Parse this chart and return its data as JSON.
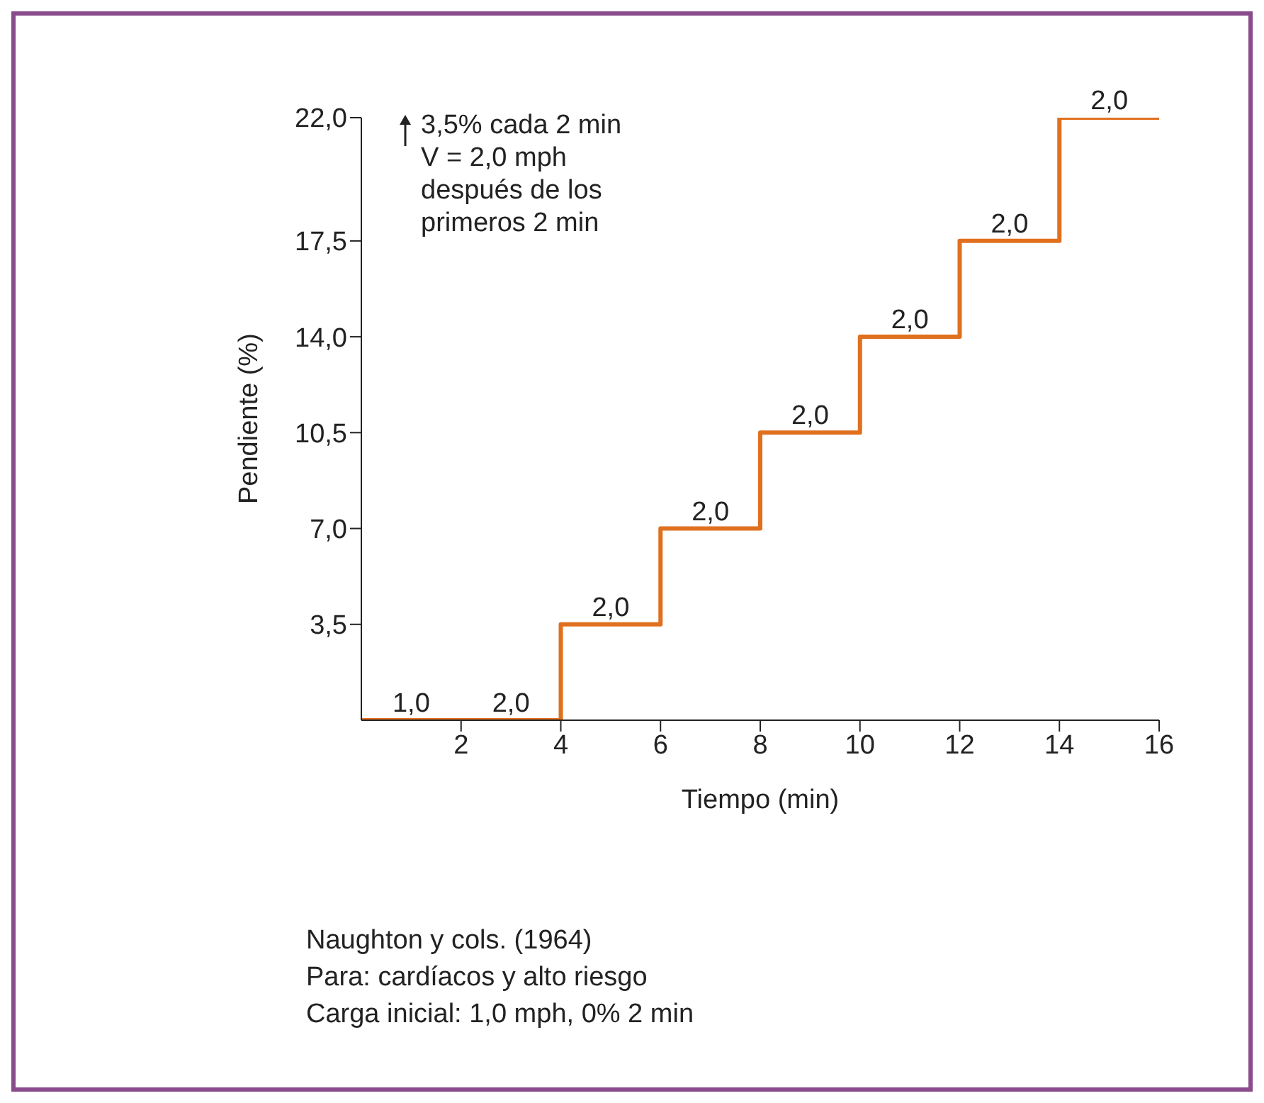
{
  "chart_data": {
    "type": "step",
    "xlabel": "Tiempo (min)",
    "ylabel": "Pendiente (%)",
    "x": [
      0,
      4,
      6,
      8,
      10,
      12,
      14,
      16
    ],
    "series": [
      {
        "color": "#e0701e",
        "values": [
          0,
          3.5,
          7,
          10.5,
          14,
          17.5,
          22,
          22
        ]
      }
    ],
    "xlim": [
      0,
      16
    ],
    "xticks": [
      2,
      4,
      6,
      8,
      10,
      12,
      14,
      16
    ],
    "ylim": [
      0,
      22
    ],
    "yticks": [
      {
        "value": 3.5,
        "label": "3,5"
      },
      {
        "value": 7,
        "label": "7,0"
      },
      {
        "value": 10.5,
        "label": "10,5"
      },
      {
        "value": 14,
        "label": "14,0"
      },
      {
        "value": 17.5,
        "label": "17,5"
      },
      {
        "value": 22,
        "label": "22,0"
      }
    ],
    "grid": false,
    "legend": false,
    "marker": "none",
    "line_style": "solid",
    "annotations": [
      "3,5% cada 2 min\nV = 2,0 mph\ndespués de los\nprimeros 2 min",
      {
        "text": "1,0",
        "x": 1,
        "y": 0
      },
      {
        "text": "2,0",
        "x": 3,
        "y": 0
      },
      {
        "text": "2,0",
        "x": 5,
        "y": 3.5
      },
      {
        "text": "2,0",
        "x": 7,
        "y": 7
      },
      {
        "text": "2,0",
        "x": 9,
        "y": 10.5
      },
      {
        "text": "2,0",
        "x": 11,
        "y": 14
      },
      {
        "text": "2,0",
        "x": 13,
        "y": 17.5
      },
      {
        "text": "2,0",
        "x": 15,
        "y": 22
      },
      "Naughton y cols. (1964)",
      "Para: cardíacos y alto riesgo",
      "Carga inicial: 1,0 mph, 0% 2 min"
    ]
  }
}
